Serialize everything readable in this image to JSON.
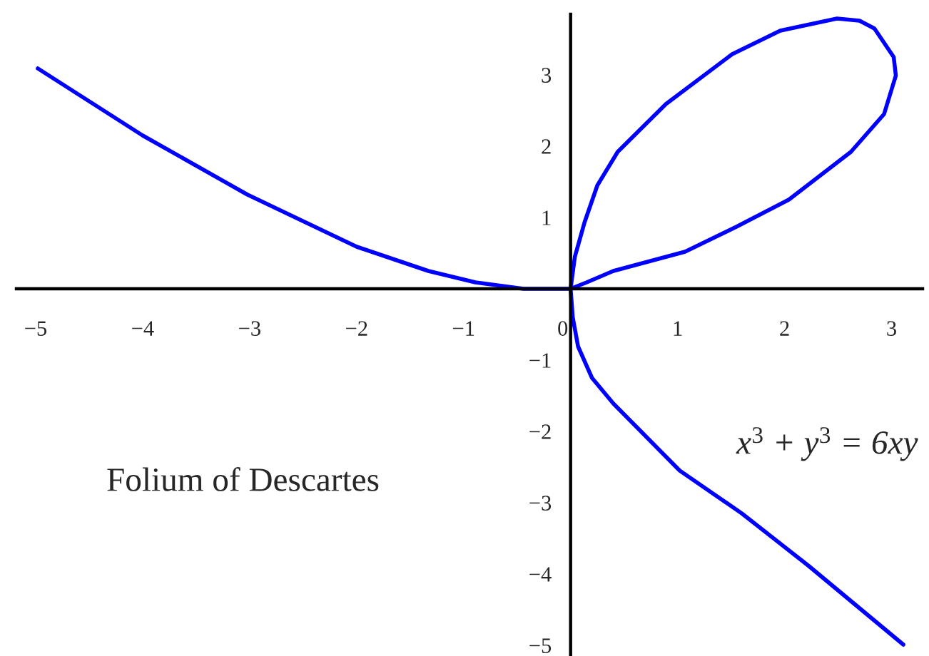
{
  "chart_data": {
    "type": "line",
    "x": [
      -4.98,
      -4.0,
      -3.02,
      -2.0,
      -1.33,
      -0.89,
      -0.44,
      0,
      0.04,
      0.13,
      0.25,
      0.44,
      0.89,
      1.51,
      1.96,
      2.49,
      2.7,
      2.84,
      3.02,
      3.04,
      2.93,
      2.62,
      2.04,
      1.55,
      1.07,
      0.4,
      0.15,
      0,
      0.02,
      0.07,
      0.2,
      0.4,
      1.02,
      1.6,
      2.22,
      3.11
    ],
    "series": [
      {
        "color": "#0000ff",
        "values": [
          3.09,
          2.15,
          1.32,
          0.59,
          0.25,
          0.09,
          0.0,
          0,
          0.45,
          0.93,
          1.45,
          1.92,
          2.59,
          3.29,
          3.62,
          3.79,
          3.76,
          3.65,
          3.25,
          2.99,
          2.45,
          1.92,
          1.25,
          0.87,
          0.52,
          0.25,
          0.09,
          0,
          -0.4,
          -0.81,
          -1.25,
          -1.61,
          -2.55,
          -3.15,
          -3.88,
          -4.99
        ]
      }
    ],
    "xlim": [
      -5.18,
      3.29
    ],
    "ylim": [
      -5.15,
      3.85
    ],
    "xticks": [
      {
        "value": -5,
        "label": "−5"
      },
      {
        "value": -4,
        "label": "−4"
      },
      {
        "value": -3,
        "label": "−3"
      },
      {
        "value": -2,
        "label": "−2"
      },
      {
        "value": -1,
        "label": "−1"
      },
      0,
      1,
      2,
      3
    ],
    "yticks": [
      {
        "value": -5,
        "label": "−5"
      },
      {
        "value": -4,
        "label": "−4"
      },
      {
        "value": -3,
        "label": "−3"
      },
      {
        "value": -2,
        "label": "−2"
      },
      {
        "value": -1,
        "label": "−1"
      },
      1,
      2,
      3
    ],
    "annotations": [
      "Folium of Descartes",
      "x$^{3}$ + y$^{3}$ = 6xy"
    ],
    "grid": false,
    "legend": false,
    "marker": "none",
    "line_style": "solid"
  }
}
